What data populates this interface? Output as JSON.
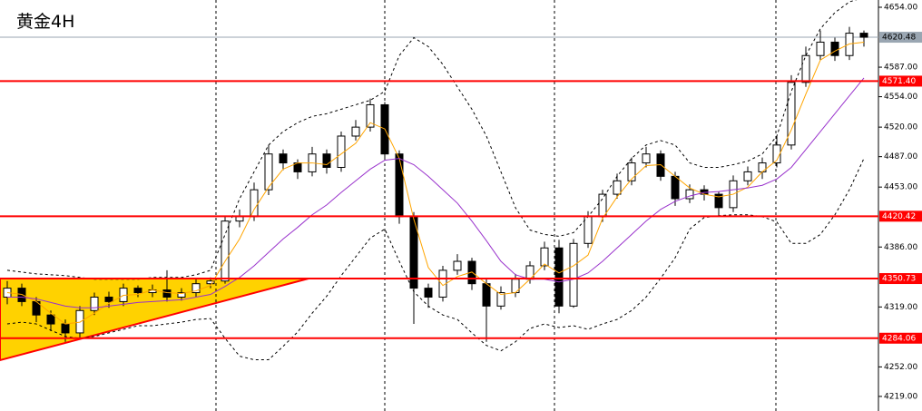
{
  "chart_data": {
    "type": "candlestick",
    "title": "黄金4H",
    "ylim": [
      4202.7,
      4662.1
    ],
    "yticks": [
      {
        "value": 4654,
        "label": "4654.00"
      },
      {
        "value": 4587,
        "label": "4587.00"
      },
      {
        "value": 4554,
        "label": "4554.00"
      },
      {
        "value": 4520,
        "label": "4520.00"
      },
      {
        "value": 4487,
        "label": "4487.00"
      },
      {
        "value": 4453,
        "label": "4453.00"
      },
      {
        "value": 4386,
        "label": "4386.00"
      },
      {
        "value": 4319,
        "label": "4319.00"
      },
      {
        "value": 4252,
        "label": "4252.00"
      },
      {
        "value": 4219,
        "label": "4219.00"
      }
    ],
    "levels": [
      {
        "value": 4571.4,
        "label": "4571.40"
      },
      {
        "value": 4420.42,
        "label": "4420.42"
      },
      {
        "value": 4350.73,
        "label": "4350.73"
      },
      {
        "value": 4284.06,
        "label": "4284.06"
      }
    ],
    "level_color": "#ff0000",
    "current_price": {
      "value": 4620.48,
      "label": "4620.48"
    },
    "open": [
      4330,
      4340,
      4325,
      4310,
      4300,
      4290,
      4315,
      4330,
      4325,
      4340,
      4335,
      4338,
      4330,
      4335,
      4345,
      4348,
      4415,
      4420,
      4450,
      4490,
      4480,
      4470,
      4490,
      4475,
      4510,
      4520,
      4545,
      4490,
      4420,
      4340,
      4330,
      4360,
      4370,
      4345,
      4320,
      4335,
      4350,
      4365,
      4385,
      4320,
      4390,
      4420,
      4445,
      4460,
      4480,
      4490,
      4465,
      4440,
      4450,
      4445,
      4430,
      4460,
      4470,
      4480,
      4500,
      4570,
      4600,
      4615,
      4600,
      4625
    ],
    "high": [
      4348,
      4345,
      4330,
      4315,
      4305,
      4320,
      4335,
      4336,
      4345,
      4343,
      4344,
      4360,
      4340,
      4350,
      4352,
      4420,
      4428,
      4458,
      4500,
      4495,
      4484,
      4498,
      4495,
      4515,
      4528,
      4552,
      4548,
      4494,
      4425,
      4345,
      4365,
      4378,
      4374,
      4350,
      4342,
      4356,
      4370,
      4392,
      4394,
      4395,
      4426,
      4450,
      4468,
      4486,
      4498,
      4494,
      4470,
      4456,
      4455,
      4448,
      4466,
      4476,
      4486,
      4510,
      4578,
      4610,
      4628,
      4620,
      4632,
      4628
    ],
    "low": [
      4322,
      4320,
      4302,
      4292,
      4280,
      4284,
      4310,
      4318,
      4320,
      4330,
      4330,
      4325,
      4326,
      4330,
      4340,
      4345,
      4408,
      4415,
      4444,
      4472,
      4462,
      4465,
      4468,
      4470,
      4505,
      4515,
      4485,
      4412,
      4300,
      4318,
      4325,
      4355,
      4338,
      4280,
      4316,
      4330,
      4345,
      4360,
      4312,
      4318,
      4385,
      4414,
      4440,
      4455,
      4475,
      4460,
      4432,
      4435,
      4438,
      4420,
      4425,
      4455,
      4462,
      4475,
      4495,
      4565,
      4595,
      4594,
      4595,
      4610
    ],
    "close": [
      4340,
      4325,
      4310,
      4300,
      4290,
      4315,
      4330,
      4325,
      4340,
      4335,
      4338,
      4330,
      4335,
      4345,
      4348,
      4415,
      4420,
      4450,
      4490,
      4480,
      4470,
      4490,
      4475,
      4510,
      4520,
      4545,
      4490,
      4420,
      4340,
      4330,
      4360,
      4370,
      4345,
      4320,
      4335,
      4350,
      4365,
      4385,
      4320,
      4390,
      4420,
      4445,
      4460,
      4480,
      4490,
      4465,
      4440,
      4450,
      4445,
      4430,
      4460,
      4470,
      4480,
      4500,
      4570,
      4600,
      4615,
      4600,
      4625,
      4620.48
    ],
    "series": [
      {
        "color": "#ffa500",
        "dash": false,
        "values": [
          4335,
          4333,
          4325,
          4312,
          4300,
          4302,
          4312,
          4323,
          4332,
          4333,
          4338,
          4335,
          4334,
          4337,
          4343,
          4370,
          4395,
          4428,
          4453,
          4473,
          4480,
          4480,
          4478,
          4490,
          4502,
          4525,
          4518,
          4485,
          4417,
          4363,
          4343,
          4353,
          4358,
          4345,
          4333,
          4335,
          4350,
          4367,
          4357,
          4365,
          4377,
          4418,
          4442,
          4462,
          4477,
          4478,
          4465,
          4452,
          4445,
          4442,
          4445,
          4453,
          4470,
          4483,
          4517,
          4557,
          4595,
          4605,
          4613,
          4615
        ]
      },
      {
        "color": "#9932cc",
        "dash": false,
        "values": [
          4330,
          4330,
          4328,
          4324,
          4320,
          4318,
          4318,
          4320,
          4322,
          4324,
          4325,
          4326,
          4327,
          4330,
          4333,
          4342,
          4352,
          4365,
          4380,
          4395,
          4408,
          4422,
          4433,
          4447,
          4460,
          4473,
          4483,
          4485,
          4478,
          4465,
          4450,
          4435,
          4415,
          4393,
          4370,
          4355,
          4350,
          4350,
          4347,
          4350,
          4357,
          4370,
          4385,
          4400,
          4415,
          4428,
          4437,
          4443,
          4447,
          4448,
          4450,
          4452,
          4455,
          4462,
          4475,
          4495,
          4515,
          4535,
          4555,
          4575
        ]
      },
      {
        "color": "#000000",
        "dash": true,
        "values": [
          4360,
          4358,
          4356,
          4355,
          4354,
          4352,
          4350,
          4350,
          4350,
          4350,
          4352,
          4352,
          4352,
          4355,
          4360,
          4400,
          4440,
          4470,
          4500,
          4515,
          4525,
          4532,
          4535,
          4540,
          4545,
          4550,
          4560,
          4600,
          4620,
          4610,
          4590,
          4565,
          4540,
          4510,
          4470,
          4430,
          4405,
          4400,
          4398,
          4402,
          4420,
          4440,
          4465,
          4485,
          4500,
          4505,
          4500,
          4480,
          4475,
          4475,
          4478,
          4482,
          4490,
          4510,
          4560,
          4600,
          4630,
          4648,
          4660,
          4665
        ]
      },
      {
        "color": "#000000",
        "dash": true,
        "values": [
          4300,
          4302,
          4300,
          4293,
          4286,
          4284,
          4286,
          4290,
          4294,
          4298,
          4298,
          4300,
          4302,
          4305,
          4306,
          4284,
          4264,
          4260,
          4260,
          4275,
          4291,
          4312,
          4331,
          4354,
          4375,
          4396,
          4406,
          4370,
          4336,
          4320,
          4310,
          4305,
          4290,
          4276,
          4270,
          4280,
          4295,
          4300,
          4296,
          4298,
          4294,
          4300,
          4305,
          4315,
          4330,
          4351,
          4374,
          4406,
          4419,
          4421,
          4422,
          4422,
          4420,
          4414,
          4390,
          4390,
          4400,
          4422,
          4450,
          4485
        ]
      }
    ]
  }
}
